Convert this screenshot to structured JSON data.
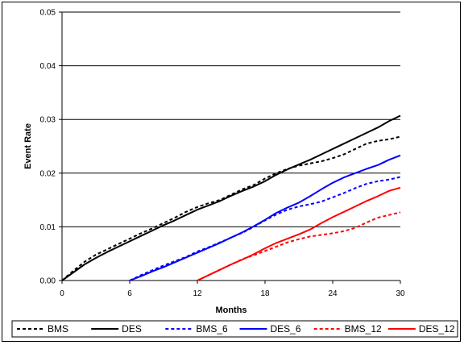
{
  "chart_data": {
    "type": "line",
    "title": "",
    "xlabel": "Months",
    "ylabel": "Event Rate",
    "xlim": [
      0,
      30
    ],
    "ylim": [
      0,
      0.05
    ],
    "xticks": [
      "0",
      "6",
      "12",
      "18",
      "24",
      "30"
    ],
    "yticks": [
      "0.00",
      "0.01",
      "0.02",
      "0.03",
      "0.04",
      "0.05"
    ],
    "grid": "horizontal",
    "legend_position": "bottom",
    "series": [
      {
        "name": "BMS",
        "color": "#000000",
        "style": "dashed",
        "x": [
          0,
          1,
          2,
          3,
          4,
          5,
          6,
          7,
          8,
          9,
          10,
          11,
          12,
          13,
          14,
          15,
          16,
          17,
          18,
          19,
          20,
          21,
          22,
          23,
          24,
          25,
          26,
          27,
          28,
          29,
          30
        ],
        "y": [
          0.0,
          0.0018,
          0.0035,
          0.0048,
          0.0058,
          0.0068,
          0.0078,
          0.0088,
          0.0097,
          0.0107,
          0.0117,
          0.0128,
          0.0137,
          0.0144,
          0.015,
          0.016,
          0.017,
          0.0178,
          0.019,
          0.02,
          0.0208,
          0.0214,
          0.0218,
          0.0222,
          0.0228,
          0.0235,
          0.0245,
          0.0255,
          0.026,
          0.0263,
          0.0268
        ]
      },
      {
        "name": "DES",
        "color": "#000000",
        "style": "solid",
        "x": [
          0,
          1,
          2,
          3,
          4,
          5,
          6,
          7,
          8,
          9,
          10,
          11,
          12,
          13,
          14,
          15,
          16,
          17,
          18,
          19,
          20,
          21,
          22,
          23,
          24,
          25,
          26,
          27,
          28,
          29,
          30
        ],
        "y": [
          0.0,
          0.0015,
          0.003,
          0.0042,
          0.0053,
          0.0063,
          0.0073,
          0.0083,
          0.0093,
          0.0103,
          0.0112,
          0.0122,
          0.0132,
          0.014,
          0.0148,
          0.0158,
          0.0167,
          0.0175,
          0.0185,
          0.0197,
          0.0207,
          0.0216,
          0.0225,
          0.0235,
          0.0245,
          0.0255,
          0.0265,
          0.0275,
          0.0285,
          0.0297,
          0.0307
        ]
      },
      {
        "name": "BMS_6",
        "color": "#0000ff",
        "style": "dashed",
        "x": [
          6,
          7,
          8,
          9,
          10,
          11,
          12,
          13,
          14,
          15,
          16,
          17,
          18,
          19,
          20,
          21,
          22,
          23,
          24,
          25,
          26,
          27,
          28,
          29,
          30
        ],
        "y": [
          0.0,
          0.001,
          0.0019,
          0.0028,
          0.0036,
          0.0044,
          0.0054,
          0.0062,
          0.0071,
          0.008,
          0.0089,
          0.01,
          0.0112,
          0.0123,
          0.0132,
          0.0138,
          0.0142,
          0.0147,
          0.0155,
          0.0163,
          0.0172,
          0.018,
          0.0185,
          0.0188,
          0.0193
        ]
      },
      {
        "name": "DES_6",
        "color": "#0000ff",
        "style": "solid",
        "x": [
          6,
          7,
          8,
          9,
          10,
          11,
          12,
          13,
          14,
          15,
          16,
          17,
          18,
          19,
          20,
          21,
          22,
          23,
          24,
          25,
          26,
          27,
          28,
          29,
          30
        ],
        "y": [
          0.0,
          0.0008,
          0.0017,
          0.0025,
          0.0034,
          0.0043,
          0.0052,
          0.0061,
          0.007,
          0.008,
          0.009,
          0.0101,
          0.0113,
          0.0126,
          0.0136,
          0.0145,
          0.0157,
          0.017,
          0.0182,
          0.0192,
          0.02,
          0.0208,
          0.0215,
          0.0225,
          0.0233
        ]
      },
      {
        "name": "BMS_12",
        "color": "#ff0000",
        "style": "dashed",
        "x": [
          12,
          13,
          14,
          15,
          16,
          17,
          18,
          19,
          20,
          21,
          22,
          23,
          24,
          25,
          26,
          27,
          28,
          29,
          30
        ],
        "y": [
          0.0,
          0.001,
          0.002,
          0.003,
          0.004,
          0.0047,
          0.0055,
          0.0063,
          0.0071,
          0.0077,
          0.0082,
          0.0085,
          0.0088,
          0.0092,
          0.0098,
          0.0108,
          0.0117,
          0.0122,
          0.0127
        ]
      },
      {
        "name": "DES_12",
        "color": "#ff0000",
        "style": "solid",
        "x": [
          12,
          13,
          14,
          15,
          16,
          17,
          18,
          19,
          20,
          21,
          22,
          23,
          24,
          25,
          26,
          27,
          28,
          29,
          30
        ],
        "y": [
          0.0,
          0.001,
          0.002,
          0.003,
          0.0039,
          0.0049,
          0.006,
          0.007,
          0.0078,
          0.0086,
          0.0095,
          0.0107,
          0.0118,
          0.0128,
          0.0138,
          0.0148,
          0.0157,
          0.0167,
          0.0173
        ]
      }
    ]
  }
}
